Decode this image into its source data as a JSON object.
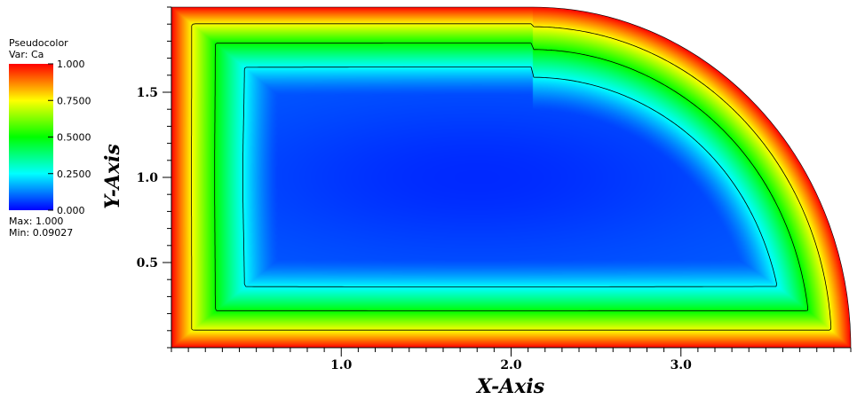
{
  "chart_data": {
    "type": "heatmap",
    "plot_kind": "Pseudocolor",
    "variable": "Var: Ca",
    "xlabel": "X-Axis",
    "ylabel": "Y-Axis",
    "xlim": [
      0.0,
      4.0
    ],
    "ylim": [
      0.0,
      2.0
    ],
    "x_ticks": [
      1.0,
      2.0,
      3.0
    ],
    "x_tick_labels": [
      "1.0",
      "2.0",
      "3.0"
    ],
    "y_ticks": [
      0.5,
      1.0,
      1.5
    ],
    "y_tick_labels": [
      "0.5",
      "1.0",
      "1.5"
    ],
    "colorbar": {
      "min": 0.0,
      "max": 1.0,
      "ticks": [
        0.0,
        0.25,
        0.5,
        0.75,
        1.0
      ],
      "tick_labels": [
        "0.000",
        "0.2500",
        "0.5000",
        "0.7500",
        "1.000"
      ],
      "colors": [
        "#0000ff",
        "#00ffff",
        "#00ff00",
        "#ffff00",
        "#ff0000"
      ]
    },
    "data_max_label": "Max:  1.000",
    "data_min_label": "Min:  0.09027",
    "data_max": 1.0,
    "data_min": 0.09027,
    "min_location": [
      1.8,
      1.0
    ],
    "domain": "Quarter-rounded rectangle; straight edges at x=0, y=0 and y=2; arc at upper-right corner",
    "contour_levels": [
      0.25,
      0.5,
      0.75
    ]
  },
  "legend": {
    "title": "Pseudocolor",
    "var": "Var: Ca",
    "max_label": "Max:  1.000",
    "min_label": "Min:  0.09027"
  }
}
